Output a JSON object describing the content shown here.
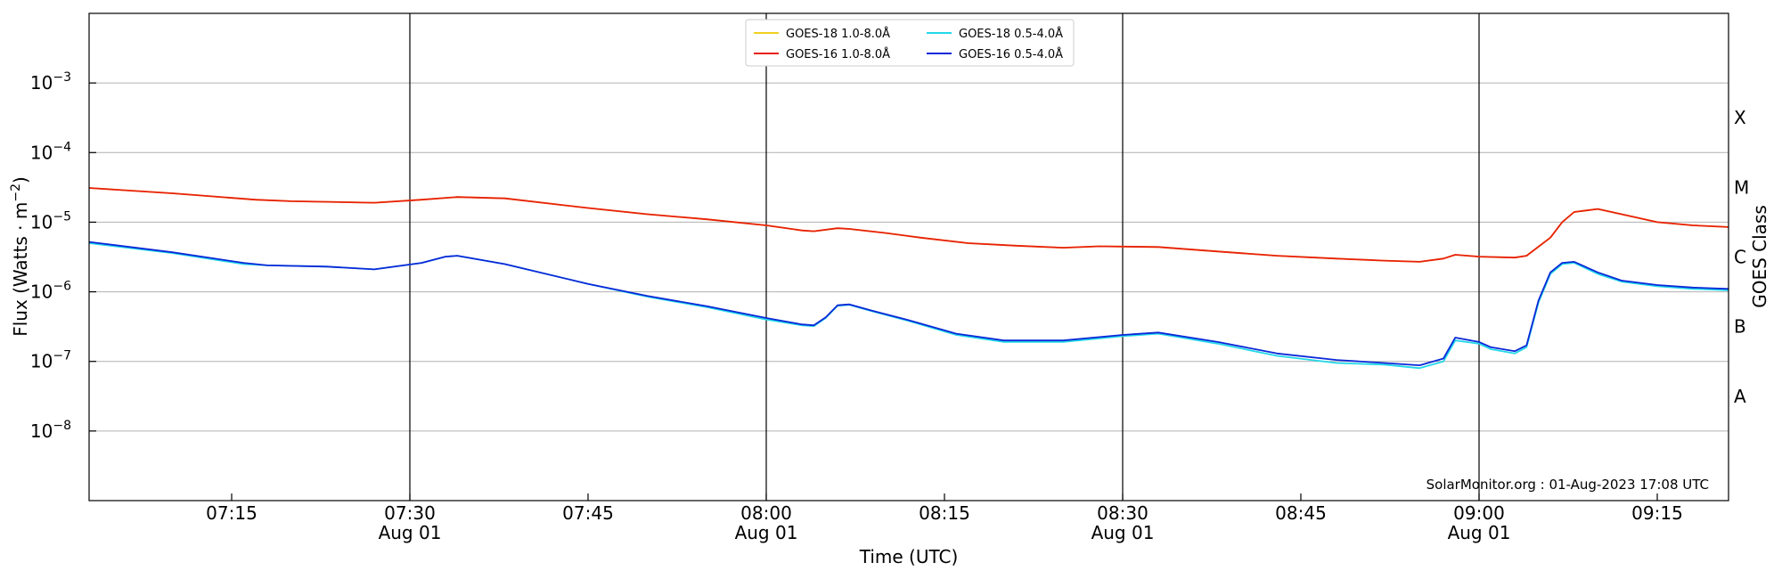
{
  "chart_data": {
    "type": "line",
    "title": "",
    "xlabel": "Time (UTC)",
    "ylabel": "Flux (Watts · m⁻²)",
    "ylabel_right": "GOES Class",
    "y_scale": "log",
    "ylim": [
      1e-09,
      0.01
    ],
    "xlim": [
      "07:03",
      "09:21"
    ],
    "grid": "horizontal",
    "legend_position": "top-center",
    "x_ticks": [
      {
        "time": "07:15",
        "label": "07:15",
        "date": ""
      },
      {
        "time": "07:30",
        "label": "07:30",
        "date": "Aug 01"
      },
      {
        "time": "07:45",
        "label": "07:45",
        "date": ""
      },
      {
        "time": "08:00",
        "label": "08:00",
        "date": "Aug 01"
      },
      {
        "time": "08:15",
        "label": "08:15",
        "date": ""
      },
      {
        "time": "08:30",
        "label": "08:30",
        "date": "Aug 01"
      },
      {
        "time": "08:45",
        "label": "08:45",
        "date": ""
      },
      {
        "time": "09:00",
        "label": "09:00",
        "date": "Aug 01"
      },
      {
        "time": "09:15",
        "label": "09:15",
        "date": ""
      }
    ],
    "y_ticks": [
      {
        "value": 1e-08,
        "label": "10",
        "exp": "−8"
      },
      {
        "value": 1e-07,
        "label": "10",
        "exp": "−7"
      },
      {
        "value": 1e-06,
        "label": "10",
        "exp": "−6"
      },
      {
        "value": 1e-05,
        "label": "10",
        "exp": "−5"
      },
      {
        "value": 0.0001,
        "label": "10",
        "exp": "−4"
      },
      {
        "value": 0.001,
        "label": "10",
        "exp": "−3"
      }
    ],
    "goes_classes": [
      {
        "label": "A",
        "value": 3.16e-08
      },
      {
        "label": "B",
        "value": 3.16e-07
      },
      {
        "label": "C",
        "value": 3.16e-06
      },
      {
        "label": "M",
        "value": 3.16e-05
      },
      {
        "label": "X",
        "value": 0.000316
      }
    ],
    "vlines": [
      "07:30",
      "08:00",
      "08:30",
      "09:00"
    ],
    "watermark": "SolarMonitor.org : 01-Aug-2023 17:08 UTC",
    "series": [
      {
        "name": "GOES-18 1.0-8.0Å",
        "color": "#f0d020",
        "x": [
          "07:03",
          "07:10",
          "07:17",
          "07:20",
          "07:27",
          "07:31",
          "07:34",
          "07:38",
          "07:45",
          "07:50",
          "07:55",
          "08:00",
          "08:03",
          "08:04",
          "08:06",
          "08:07",
          "08:10",
          "08:13",
          "08:17",
          "08:21",
          "08:25",
          "08:28",
          "08:33",
          "08:38",
          "08:43",
          "08:48",
          "08:52",
          "08:55",
          "08:57",
          "08:58",
          "09:00",
          "09:03",
          "09:04",
          "09:06",
          "09:07",
          "09:08",
          "09:10",
          "09:12",
          "09:15",
          "09:18",
          "09:21"
        ],
        "y": [
          3.1e-05,
          2.6e-05,
          2.1e-05,
          2e-05,
          1.9e-05,
          2.1e-05,
          2.3e-05,
          2.2e-05,
          1.6e-05,
          1.3e-05,
          1.1e-05,
          9e-06,
          7.6e-06,
          7.4e-06,
          8.2e-06,
          8e-06,
          7e-06,
          6e-06,
          5e-06,
          4.6e-06,
          4.3e-06,
          4.5e-06,
          4.4e-06,
          3.8e-06,
          3.3e-06,
          3e-06,
          2.8e-06,
          2.7e-06,
          3e-06,
          3.4e-06,
          3.2e-06,
          3.1e-06,
          3.3e-06,
          6e-06,
          1e-05,
          1.4e-05,
          1.55e-05,
          1.3e-05,
          1e-05,
          9e-06,
          8.5e-06
        ]
      },
      {
        "name": "GOES-16 1.0-8.0Å",
        "color": "#e8200c",
        "x": [
          "07:03",
          "07:10",
          "07:17",
          "07:20",
          "07:27",
          "07:31",
          "07:34",
          "07:38",
          "07:45",
          "07:50",
          "07:55",
          "08:00",
          "08:03",
          "08:04",
          "08:06",
          "08:07",
          "08:10",
          "08:13",
          "08:17",
          "08:21",
          "08:25",
          "08:28",
          "08:33",
          "08:38",
          "08:43",
          "08:48",
          "08:52",
          "08:55",
          "08:57",
          "08:58",
          "09:00",
          "09:03",
          "09:04",
          "09:06",
          "09:07",
          "09:08",
          "09:10",
          "09:12",
          "09:15",
          "09:18",
          "09:21"
        ],
        "y": [
          3.1e-05,
          2.6e-05,
          2.1e-05,
          2e-05,
          1.9e-05,
          2.1e-05,
          2.3e-05,
          2.2e-05,
          1.6e-05,
          1.3e-05,
          1.1e-05,
          9e-06,
          7.6e-06,
          7.4e-06,
          8.2e-06,
          8e-06,
          7e-06,
          6e-06,
          5e-06,
          4.6e-06,
          4.3e-06,
          4.5e-06,
          4.4e-06,
          3.8e-06,
          3.3e-06,
          3e-06,
          2.8e-06,
          2.7e-06,
          3e-06,
          3.4e-06,
          3.2e-06,
          3.1e-06,
          3.3e-06,
          6e-06,
          1e-05,
          1.4e-05,
          1.55e-05,
          1.3e-05,
          1e-05,
          9e-06,
          8.5e-06
        ]
      },
      {
        "name": "GOES-18 0.5-4.0Å",
        "color": "#22d8e8",
        "x": [
          "07:03",
          "07:10",
          "07:16",
          "07:18",
          "07:23",
          "07:27",
          "07:31",
          "07:33",
          "07:34",
          "07:38",
          "07:45",
          "07:50",
          "07:55",
          "08:00",
          "08:03",
          "08:04",
          "08:05",
          "08:06",
          "08:07",
          "08:09",
          "08:12",
          "08:16",
          "08:20",
          "08:25",
          "08:30",
          "08:33",
          "08:38",
          "08:43",
          "08:48",
          "08:52",
          "08:55",
          "08:57",
          "08:58",
          "09:00",
          "09:01",
          "09:03",
          "09:04",
          "09:05",
          "09:06",
          "09:07",
          "09:08",
          "09:10",
          "09:12",
          "09:15",
          "09:18",
          "09:21"
        ],
        "y": [
          5e-06,
          3.6e-06,
          2.5e-06,
          2.4e-06,
          2.3e-06,
          2.1e-06,
          2.6e-06,
          3.2e-06,
          3.3e-06,
          2.5e-06,
          1.3e-06,
          8.5e-07,
          6e-07,
          4e-07,
          3.3e-07,
          3.2e-07,
          4.2e-07,
          6.3e-07,
          6.5e-07,
          5.2e-07,
          3.8e-07,
          2.4e-07,
          1.9e-07,
          1.9e-07,
          2.3e-07,
          2.5e-07,
          1.8e-07,
          1.2e-07,
          9.5e-08,
          9e-08,
          8e-08,
          1e-07,
          2e-07,
          1.8e-07,
          1.5e-07,
          1.3e-07,
          1.6e-07,
          7e-07,
          1.8e-06,
          2.5e-06,
          2.6e-06,
          1.8e-06,
          1.4e-06,
          1.2e-06,
          1.1e-06,
          1.05e-06
        ]
      },
      {
        "name": "GOES-16 0.5-4.0Å",
        "color": "#0a28d8",
        "x": [
          "07:03",
          "07:10",
          "07:16",
          "07:18",
          "07:23",
          "07:27",
          "07:31",
          "07:33",
          "07:34",
          "07:38",
          "07:45",
          "07:50",
          "07:55",
          "08:00",
          "08:03",
          "08:04",
          "08:05",
          "08:06",
          "08:07",
          "08:09",
          "08:12",
          "08:16",
          "08:20",
          "08:25",
          "08:30",
          "08:33",
          "08:38",
          "08:43",
          "08:48",
          "08:52",
          "08:55",
          "08:57",
          "08:58",
          "09:00",
          "09:01",
          "09:03",
          "09:04",
          "09:05",
          "09:06",
          "09:07",
          "09:08",
          "09:10",
          "09:12",
          "09:15",
          "09:18",
          "09:21"
        ],
        "y": [
          5.2e-06,
          3.7e-06,
          2.6e-06,
          2.4e-06,
          2.3e-06,
          2.1e-06,
          2.6e-06,
          3.2e-06,
          3.3e-06,
          2.5e-06,
          1.3e-06,
          8.7e-07,
          6.2e-07,
          4.2e-07,
          3.4e-07,
          3.3e-07,
          4.3e-07,
          6.4e-07,
          6.6e-07,
          5.3e-07,
          3.9e-07,
          2.5e-07,
          2e-07,
          2e-07,
          2.4e-07,
          2.6e-07,
          1.9e-07,
          1.3e-07,
          1.05e-07,
          9.5e-08,
          8.8e-08,
          1.1e-07,
          2.2e-07,
          1.9e-07,
          1.6e-07,
          1.4e-07,
          1.7e-07,
          7.5e-07,
          1.9e-06,
          2.6e-06,
          2.7e-06,
          1.9e-06,
          1.45e-06,
          1.25e-06,
          1.15e-06,
          1.1e-06
        ]
      }
    ]
  }
}
